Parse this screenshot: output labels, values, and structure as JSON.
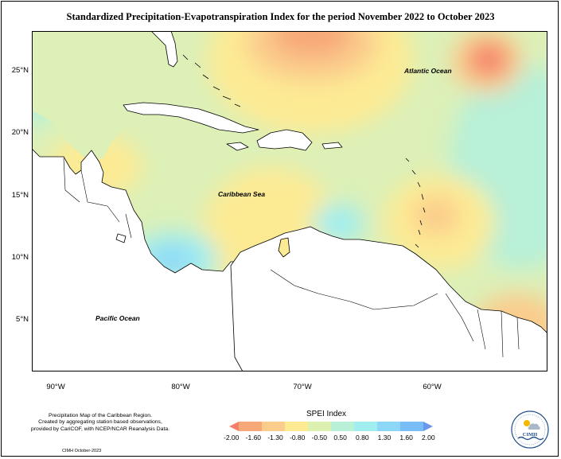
{
  "title": "Standardized Precipitation-Evapotranspiration Index for the period November 2022 to October 2023",
  "map": {
    "labels": {
      "atlantic": "Atlantic Ocean",
      "caribbean": "Caribbean Sea",
      "pacific": "Pacific Ocean"
    },
    "lat_ticks": [
      "25°N",
      "20°N",
      "15°N",
      "10°N",
      "5°N"
    ],
    "lon_ticks": [
      "90°W",
      "80°W",
      "70°W",
      "60°W"
    ],
    "ocean_color": "#d9f0b8",
    "land_color": "#ffffff"
  },
  "credits": {
    "line1": "Precipitation Map of the Caribbean Region.",
    "line2": "Created by aggregating station based observations,",
    "line3": "provided by CariCOF, with NCEP/NCAR Reanalysis Data.",
    "stamp": "CIMH October-2023"
  },
  "legend": {
    "title": "SPEI Index",
    "values": [
      "-2.00",
      "-1.60",
      "-1.30",
      "-0.80",
      "-0.50",
      "0.50",
      "0.80",
      "1.30",
      "1.60",
      "2.00"
    ],
    "colors": [
      "#f4806a",
      "#f7a878",
      "#fbcc8c",
      "#fdeb94",
      "#dcf0b0",
      "#b8f0d8",
      "#a0eef0",
      "#8cd6f8",
      "#78bcf8",
      "#6c98e8"
    ]
  },
  "logo": {
    "text": "CIMH"
  }
}
